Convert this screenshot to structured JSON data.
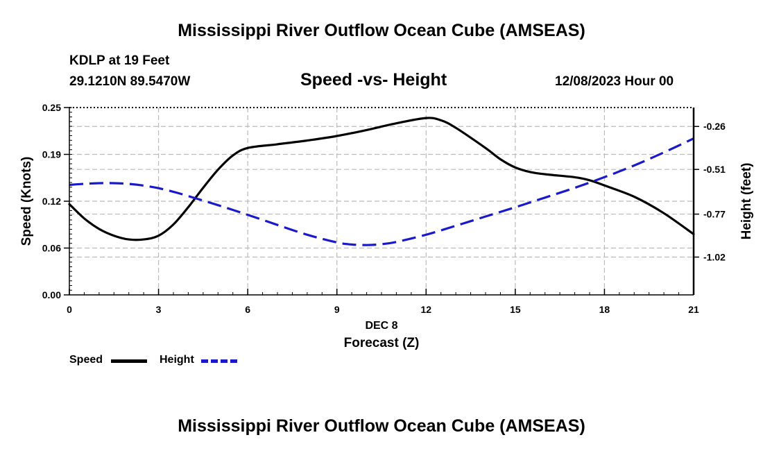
{
  "page": {
    "title": "Mississippi River Outflow Ocean Cube (AMSEAS)",
    "station": "KDLP at 19 Feet",
    "coords": "29.1210N  89.5470W",
    "subtitle": "Speed -vs- Height",
    "date": "12/08/2023 Hour 00",
    "footer_title": "Mississippi River Outflow Ocean Cube (AMSEAS)"
  },
  "legend": {
    "speed_label": "Speed",
    "height_label": "Height"
  },
  "colors": {
    "speed": "#000000",
    "height": "#1a1acc",
    "grid": "#bbbbbb"
  },
  "chart_data": {
    "type": "line",
    "title": "Speed -vs- Height",
    "xlabel": "DEC 8",
    "xlabel2": "Forecast (Z)",
    "ylabel": "Speed (Knots)",
    "y2label": "Height (feet)",
    "xlim": [
      0,
      21
    ],
    "ylim": [
      0,
      0.25
    ],
    "y2lim": [
      -1.24,
      -0.15
    ],
    "x_ticks": [
      0,
      3,
      6,
      9,
      12,
      15,
      18,
      21
    ],
    "x_tick_labels": [
      "0",
      "3",
      "6",
      "9",
      "12",
      "15",
      "18",
      "21"
    ],
    "y_ticks": [
      0,
      0.0625,
      0.125,
      0.1875,
      0.25
    ],
    "y_tick_labels": [
      "0.00",
      "0.06",
      "0.12",
      "0.19",
      "0.25"
    ],
    "y2_ticks": [
      -1.02,
      -0.77,
      -0.51,
      -0.26
    ],
    "y2_tick_labels": [
      "-1.02",
      "-0.77",
      "-0.51",
      "-0.26"
    ],
    "grid": true,
    "series": [
      {
        "name": "Speed",
        "axis": "left",
        "style": "solid",
        "x": [
          0,
          0.5,
          1,
          1.5,
          2,
          2.5,
          3,
          3.5,
          4,
          4.5,
          5,
          5.5,
          6,
          7,
          8,
          9,
          10,
          11,
          12,
          12.5,
          13,
          14,
          14.5,
          15,
          15.5,
          16,
          17,
          17.5,
          18,
          19,
          20,
          21
        ],
        "values": [
          0.121,
          0.102,
          0.088,
          0.079,
          0.074,
          0.074,
          0.079,
          0.094,
          0.117,
          0.143,
          0.167,
          0.186,
          0.196,
          0.201,
          0.206,
          0.212,
          0.22,
          0.229,
          0.236,
          0.233,
          0.223,
          0.196,
          0.181,
          0.17,
          0.164,
          0.161,
          0.157,
          0.153,
          0.146,
          0.131,
          0.109,
          0.081
        ]
      },
      {
        "name": "Height",
        "axis": "right",
        "style": "dashed",
        "x": [
          0,
          0.5,
          1,
          1.5,
          2,
          2.5,
          3,
          3.5,
          4,
          5,
          6,
          7,
          8,
          9,
          9.5,
          10,
          10.5,
          11,
          12,
          13,
          14,
          15,
          16,
          17,
          18,
          19,
          20,
          21
        ],
        "values": [
          -0.6,
          -0.594,
          -0.59,
          -0.59,
          -0.594,
          -0.604,
          -0.619,
          -0.64,
          -0.665,
          -0.718,
          -0.774,
          -0.833,
          -0.89,
          -0.935,
          -0.947,
          -0.95,
          -0.945,
          -0.932,
          -0.89,
          -0.838,
          -0.784,
          -0.73,
          -0.674,
          -0.617,
          -0.555,
          -0.487,
          -0.411,
          -0.33
        ]
      }
    ]
  }
}
